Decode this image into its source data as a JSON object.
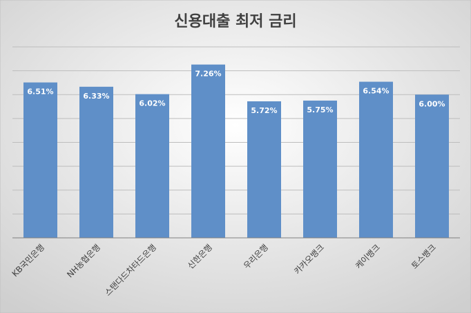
{
  "chart_data": {
    "type": "bar",
    "title": "신용대출 최저 금리",
    "categories": [
      "KB국민은행",
      "NH농협은행",
      "스탠다드차타드은행",
      "신한은행",
      "우리은행",
      "카카오뱅크",
      "케이뱅크",
      "토스뱅크"
    ],
    "values": [
      6.51,
      6.33,
      6.02,
      7.26,
      5.72,
      5.75,
      6.54,
      6.0
    ],
    "value_labels": [
      "6.51%",
      "6.33%",
      "6.02%",
      "7.26%",
      "5.72%",
      "5.75%",
      "6.54%",
      "6.00%"
    ],
    "color": "#5f8fc8",
    "ylim": [
      0,
      8
    ],
    "yticks": [
      0,
      1,
      2,
      3,
      4,
      5,
      6,
      7,
      8
    ],
    "grid": true
  }
}
